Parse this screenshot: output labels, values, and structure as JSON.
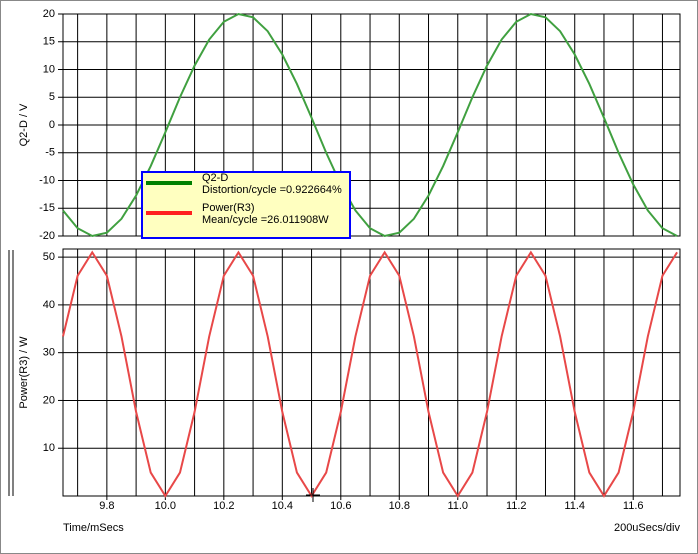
{
  "chart_data": [
    {
      "type": "line",
      "ylabel": "Q2-D / V",
      "ylim": [
        -20,
        20
      ],
      "yticks": [
        20,
        15,
        10,
        5,
        0,
        -5,
        -10,
        -15,
        -20
      ],
      "xlim": [
        9.65,
        11.76
      ],
      "xgrid": [
        9.7,
        9.8,
        9.9,
        10,
        10.1,
        10.2,
        10.3,
        10.4,
        10.5,
        10.6,
        10.7,
        10.8,
        10.9,
        11,
        11.1,
        11.2,
        11.3,
        11.4,
        11.5,
        11.6,
        11.7
      ],
      "x": [
        9.65,
        9.7,
        9.75,
        9.8,
        9.85,
        9.9,
        9.95,
        10,
        10.05,
        10.1,
        10.15,
        10.2,
        10.25,
        10.3,
        10.35,
        10.4,
        10.45,
        10.5,
        10.55,
        10.6,
        10.65,
        10.7,
        10.75,
        10.8,
        10.85,
        10.9,
        10.95,
        11,
        11.05,
        11.1,
        11.15,
        11.2,
        11.25,
        11.3,
        11.35,
        11.4,
        11.45,
        11.5,
        11.55,
        11.6,
        11.65,
        11.7,
        11.75
      ],
      "series": [
        {
          "name": "Q2-D",
          "legend_note": "Distortion/cycle =0.922664%",
          "color": "#40a040",
          "legend_color": "#008000",
          "values": [
            -15.4,
            -18.6,
            -20,
            -19.4,
            -16.9,
            -12.7,
            -7.4,
            -1.3,
            5,
            10.7,
            15.4,
            18.6,
            20,
            19.4,
            16.9,
            12.7,
            7.4,
            1.3,
            -5,
            -10.7,
            -15.4,
            -18.6,
            -20,
            -19.4,
            -16.9,
            -12.7,
            -7.4,
            -1.3,
            5,
            10.7,
            15.4,
            18.6,
            20,
            19.4,
            16.9,
            12.7,
            7.4,
            1.3,
            -5,
            -10.7,
            -15.4,
            -18.6,
            -20
          ]
        }
      ]
    },
    {
      "type": "line",
      "ylabel": "Power(R3) / W",
      "ylim": [
        0,
        51.7
      ],
      "yticks": [
        50,
        40,
        30,
        20,
        10
      ],
      "xlim": [
        9.65,
        11.76
      ],
      "xgrid": [
        9.7,
        9.8,
        9.9,
        10,
        10.1,
        10.2,
        10.3,
        10.4,
        10.5,
        10.6,
        10.7,
        10.8,
        10.9,
        11,
        11.1,
        11.2,
        11.3,
        11.4,
        11.5,
        11.6,
        11.7
      ],
      "xticks": [
        9.8,
        {
          "value": 10,
          "label": "10.0"
        },
        10.2,
        10.4,
        10.6,
        10.8,
        {
          "value": 11,
          "label": "11.0"
        },
        11.2,
        11.4,
        11.6
      ],
      "xlabel": "Time/mSecs",
      "xscale_note": "200uSecs/div",
      "x": [
        9.65,
        9.7,
        9.75,
        9.8,
        9.85,
        9.9,
        9.95,
        10,
        10.05,
        10.1,
        10.15,
        10.2,
        10.25,
        10.3,
        10.35,
        10.4,
        10.45,
        10.5,
        10.55,
        10.6,
        10.65,
        10.7,
        10.75,
        10.8,
        10.85,
        10.9,
        10.95,
        11,
        11.05,
        11.1,
        11.15,
        11.2,
        11.25,
        11.3,
        11.35,
        11.4,
        11.45,
        11.5,
        11.55,
        11.6,
        11.65,
        11.7,
        11.75
      ],
      "series": [
        {
          "name": "Power(R3)",
          "legend_note": "Mean/cycle =26.011908W",
          "color": "#e84848",
          "legend_color": "#ff2020",
          "values": [
            33.4,
            46.1,
            51,
            46.1,
            33.4,
            17.6,
            4.9,
            0,
            4.9,
            17.6,
            33.4,
            46.1,
            51,
            46.1,
            33.4,
            17.6,
            4.9,
            0,
            4.9,
            17.6,
            33.4,
            46.1,
            51,
            46.1,
            33.4,
            17.6,
            4.9,
            0,
            4.9,
            17.6,
            33.4,
            46.1,
            51,
            46.1,
            33.4,
            17.6,
            4.9,
            0,
            4.9,
            17.6,
            33.4,
            46.1,
            51
          ]
        }
      ]
    }
  ]
}
